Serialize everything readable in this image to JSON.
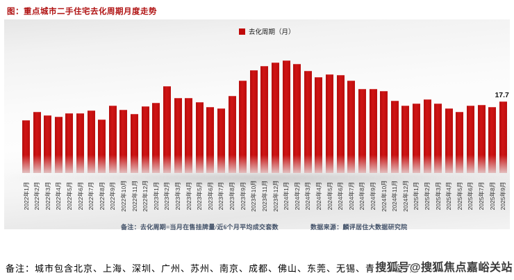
{
  "title": "图：重点城市二手住宅去化周期月度走势",
  "legend": {
    "label": "去化周期（月）",
    "swatch_color": "#c00a0a"
  },
  "colors": {
    "bar": "#c00a0a",
    "title": "#b01212"
  },
  "chart_data": {
    "type": "bar",
    "title": "重点城市二手住宅去化周期月度走势",
    "series_name": "去化周期（月）",
    "xlabel": "",
    "ylabel": "去化周期（月）",
    "ylim": [
      0,
      30
    ],
    "grid": false,
    "legend_position": "top-center",
    "categories": [
      "2022年1月",
      "2022年2月",
      "2022年3月",
      "2022年4月",
      "2022年5月",
      "2022年6月",
      "2022年7月",
      "2022年8月",
      "2022年9月",
      "2022年10月",
      "2022年11月",
      "2022年12月",
      "2023年1月",
      "2023年2月",
      "2023年3月",
      "2023年4月",
      "2023年5月",
      "2023年6月",
      "2023年7月",
      "2023年8月",
      "2023年9月",
      "2023年10月",
      "2023年11月",
      "2023年12月",
      "2024年1月",
      "2024年2月",
      "2024年3月",
      "2024年4月",
      "2024年5月",
      "2024年6月",
      "2024年7月",
      "2024年8月",
      "2024年9月",
      "2024年10月",
      "2024年11月",
      "2024年12月",
      "2025年1月",
      "2025年2月",
      "2025年3月",
      "2025年4月",
      "2025年5月",
      "2025年6月",
      "2025年7月",
      "2025年8月",
      "2025年9月"
    ],
    "values": [
      13.0,
      15.1,
      14.3,
      13.9,
      14.7,
      14.8,
      15.4,
      13.2,
      16.6,
      15.6,
      14.6,
      16.5,
      17.3,
      21.5,
      18.6,
      18.6,
      17.6,
      16.4,
      16.0,
      19.0,
      22.8,
      25.4,
      26.5,
      27.4,
      27.8,
      27.0,
      25.3,
      23.7,
      24.4,
      24.2,
      22.9,
      20.8,
      20.8,
      20.2,
      17.9,
      16.6,
      17.2,
      18.2,
      17.2,
      16.0,
      15.2,
      16.6,
      16.9,
      16.3,
      17.7
    ],
    "data_labels": [
      {
        "index": 44,
        "text": "17.7"
      }
    ]
  },
  "notes": {
    "formula": "备注：去化周期=当月在售挂牌量/近6个月平均成交套数",
    "source": "数据来源：麟评居住大数据研究院"
  },
  "footer_note": "备注：城市包含北京、上海、深圳、广州、苏州、南京、成都、佛山、东莞、无锡、青岛、厦门、郑州。",
  "watermark": "搜狐号@搜狐焦点嘉峪关站"
}
